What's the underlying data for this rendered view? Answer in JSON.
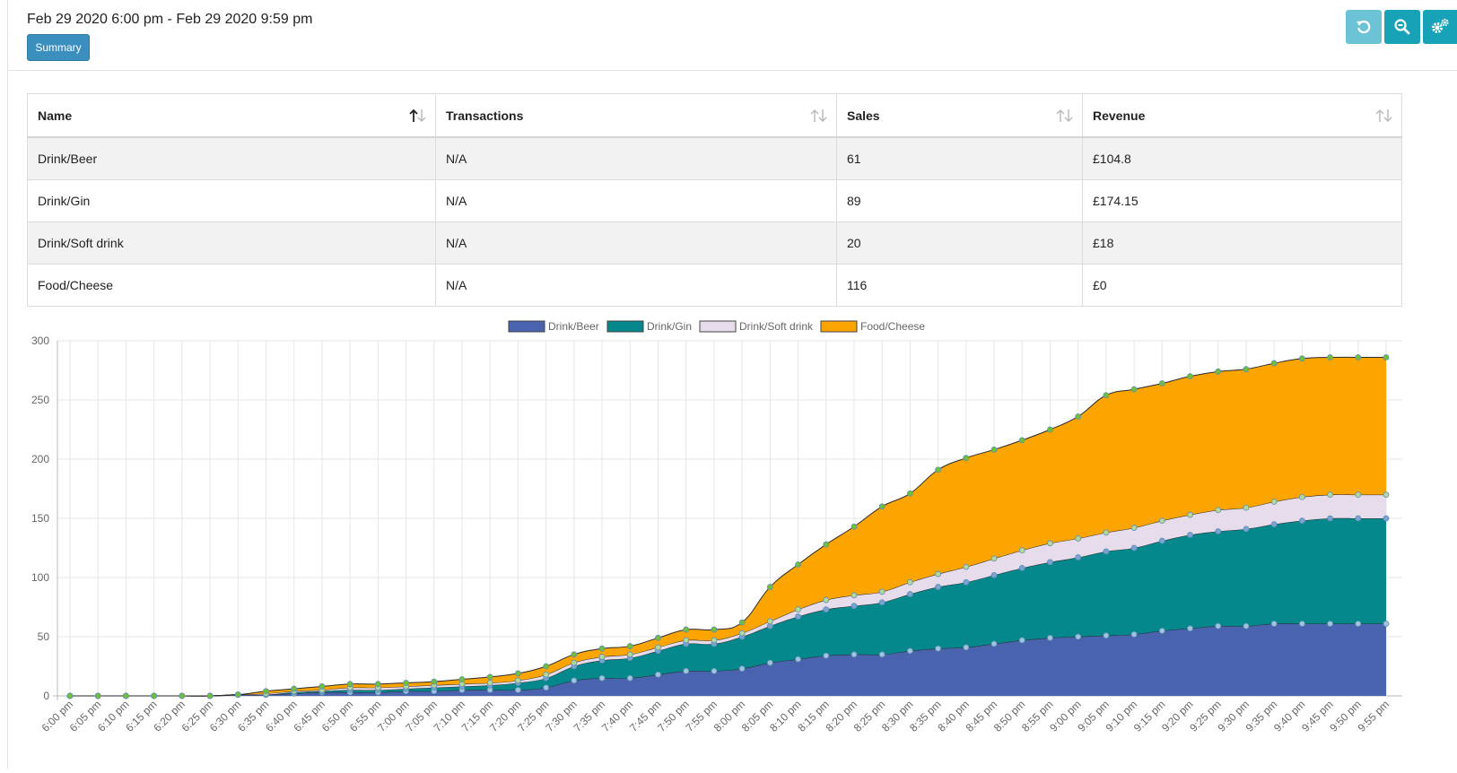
{
  "header": {
    "date_range": "Feb 29 2020 6:00 pm - Feb 29 2020 9:59 pm",
    "summary_label": "Summary",
    "toolbar": [
      {
        "icon": "undo-icon"
      },
      {
        "icon": "zoom-out-icon"
      },
      {
        "icon": "cogs-icon"
      }
    ]
  },
  "table": {
    "columns": [
      "Name",
      "Transactions",
      "Sales",
      "Revenue"
    ],
    "rows": [
      {
        "name": "Drink/Beer",
        "transactions": "N/A",
        "sales": "61",
        "revenue": "£104.8"
      },
      {
        "name": "Drink/Gin",
        "transactions": "N/A",
        "sales": "89",
        "revenue": "£174.15"
      },
      {
        "name": "Drink/Soft drink",
        "transactions": "N/A",
        "sales": "20",
        "revenue": "£18"
      },
      {
        "name": "Food/Cheese",
        "transactions": "N/A",
        "sales": "116",
        "revenue": "£0"
      }
    ]
  },
  "chart_data": {
    "type": "area",
    "stacked": true,
    "cumulative": true,
    "title": "",
    "xlabel": "",
    "ylabel": "",
    "ylim": [
      0,
      300
    ],
    "yticks": [
      0,
      50,
      100,
      150,
      200,
      250,
      300
    ],
    "grid": true,
    "legend_position": "top",
    "categories": [
      "6:00 pm",
      "6:05 pm",
      "6:10 pm",
      "6:15 pm",
      "6:20 pm",
      "6:25 pm",
      "6:30 pm",
      "6:35 pm",
      "6:40 pm",
      "6:45 pm",
      "6:50 pm",
      "6:55 pm",
      "7:00 pm",
      "7:05 pm",
      "7:10 pm",
      "7:15 pm",
      "7:20 pm",
      "7:25 pm",
      "7:30 pm",
      "7:35 pm",
      "7:40 pm",
      "7:45 pm",
      "7:50 pm",
      "7:55 pm",
      "8:00 pm",
      "8:05 pm",
      "8:10 pm",
      "8:15 pm",
      "8:20 pm",
      "8:25 pm",
      "8:30 pm",
      "8:35 pm",
      "8:40 pm",
      "8:45 pm",
      "8:50 pm",
      "8:55 pm",
      "9:00 pm",
      "9:05 pm",
      "9:10 pm",
      "9:15 pm",
      "9:20 pm",
      "9:25 pm",
      "9:30 pm",
      "9:35 pm",
      "9:40 pm",
      "9:45 pm",
      "9:50 pm",
      "9:55 pm"
    ],
    "series": [
      {
        "name": "Drink/Beer",
        "color": "#4a63ae",
        "point_color": "#9ec4df",
        "values": [
          0,
          0,
          0,
          0,
          0,
          0,
          1,
          1,
          2,
          3,
          3,
          3,
          4,
          4,
          5,
          5,
          5,
          7,
          13,
          15,
          15,
          18,
          21,
          21,
          23,
          28,
          31,
          34,
          35,
          35,
          38,
          40,
          41,
          44,
          47,
          49,
          50,
          51,
          52,
          55,
          57,
          59,
          59,
          61,
          61,
          61,
          61,
          61
        ]
      },
      {
        "name": "Drink/Gin",
        "color": "#04888c",
        "point_color": "#7aa3d4",
        "values": [
          0,
          0,
          0,
          0,
          0,
          0,
          0,
          0,
          1,
          1,
          2,
          2,
          2,
          3,
          3,
          4,
          6,
          8,
          12,
          15,
          17,
          20,
          23,
          23,
          27,
          31,
          36,
          39,
          41,
          44,
          48,
          52,
          55,
          58,
          61,
          64,
          67,
          71,
          73,
          76,
          79,
          80,
          82,
          84,
          87,
          89,
          89,
          89
        ]
      },
      {
        "name": "Drink/Soft drink",
        "color": "#e6dcec",
        "point_color": "#b4d89a",
        "values": [
          0,
          0,
          0,
          0,
          0,
          0,
          0,
          1,
          1,
          1,
          2,
          2,
          2,
          2,
          2,
          2,
          2,
          3,
          3,
          3,
          3,
          3,
          3,
          3,
          3,
          4,
          6,
          8,
          9,
          9,
          10,
          11,
          13,
          14,
          15,
          16,
          16,
          16,
          17,
          17,
          17,
          18,
          18,
          19,
          20,
          20,
          20,
          20
        ]
      },
      {
        "name": "Food/Cheese",
        "color": "#fca500",
        "point_color": "#6fbf3a",
        "values": [
          0,
          0,
          0,
          0,
          0,
          0,
          0,
          2,
          2,
          3,
          3,
          3,
          3,
          3,
          4,
          5,
          6,
          7,
          7,
          7,
          7,
          8,
          9,
          9,
          9,
          29,
          38,
          47,
          58,
          72,
          75,
          88,
          92,
          92,
          93,
          96,
          103,
          116,
          117,
          116,
          117,
          117,
          117,
          117,
          117,
          116,
          116,
          116
        ]
      }
    ]
  }
}
